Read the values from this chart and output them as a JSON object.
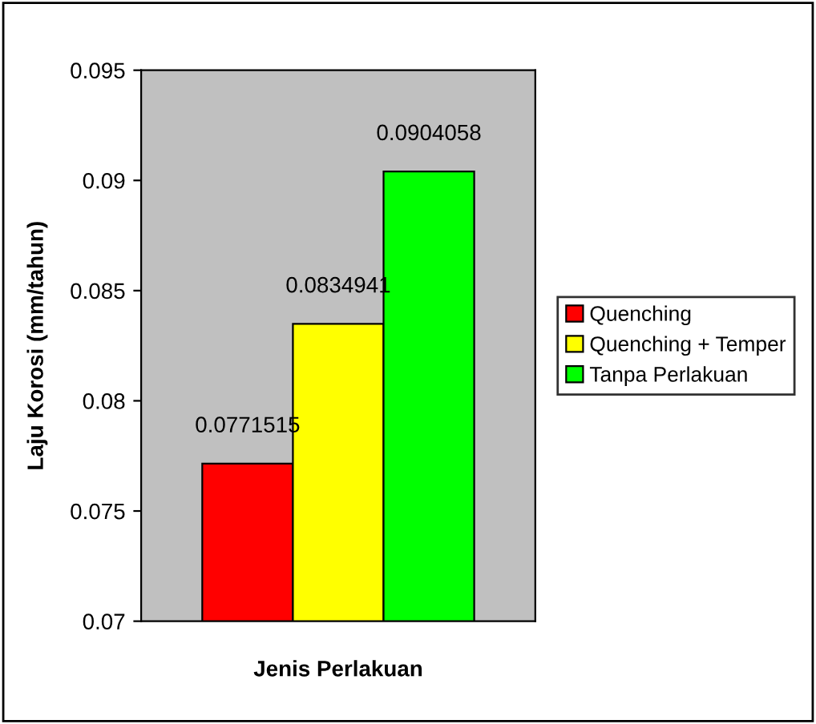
{
  "chart_data": {
    "type": "bar",
    "xlabel": "Jenis Perlakuan",
    "ylabel": "Laju Korosi (mm/tahun)",
    "categories": [
      null
    ],
    "series": [
      {
        "name": "Quenching",
        "color": "#ff0000",
        "values": [
          0.0771515
        ]
      },
      {
        "name": "Quenching + Temper",
        "color": "#ffff00",
        "values": [
          0.0834941
        ]
      },
      {
        "name": "Tanpa Perlakuan",
        "color": "#00ff00",
        "values": [
          0.0904058
        ]
      }
    ],
    "ylim": [
      0.07,
      0.095
    ],
    "yticks": [
      0.07,
      0.075,
      0.08,
      0.085,
      0.09,
      0.095
    ],
    "data_labels": true,
    "legend": "right",
    "grid": false
  }
}
